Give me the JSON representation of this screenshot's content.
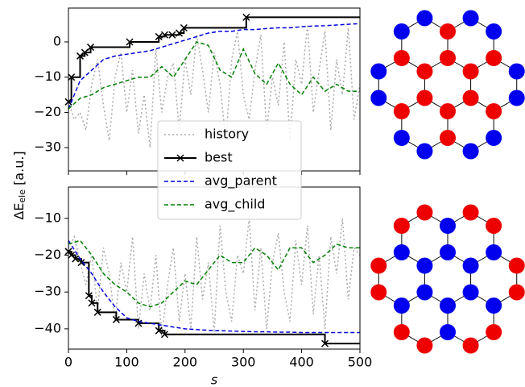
{
  "chart_data": [
    {
      "type": "line",
      "ylabel": [
        "ΔE",
        "ele",
        " [a.u.]"
      ],
      "xlim": [
        0,
        500
      ],
      "xticks": [
        0,
        100,
        200,
        300,
        400,
        500
      ],
      "show_xticklabels": false,
      "ylim": [
        -36.6,
        9.6
      ],
      "yticks": [
        0,
        {
          "value": -10,
          "label": "−10"
        },
        {
          "value": -20,
          "label": "−20"
        },
        {
          "value": -30,
          "label": "−30"
        }
      ],
      "legend": "center",
      "series": [
        {
          "name": "history",
          "color": "#aaaaaa",
          "style": "dotted",
          "x": [
            0,
            10,
            20,
            30,
            40,
            50,
            60,
            70,
            80,
            90,
            100,
            110,
            120,
            130,
            140,
            150,
            160,
            170,
            180,
            190,
            200,
            210,
            220,
            230,
            240,
            250,
            260,
            270,
            280,
            290,
            300,
            310,
            320,
            330,
            340,
            350,
            360,
            370,
            380,
            390,
            400,
            410,
            420,
            430,
            440,
            450,
            460,
            470,
            480,
            490,
            500
          ],
          "values": [
            -17,
            -22,
            -20,
            -25,
            -12,
            -5,
            -18,
            -28,
            -10,
            -3,
            -20,
            -8,
            -26,
            -15,
            -30,
            -2,
            -20,
            -10,
            -6,
            -25,
            -5,
            -15,
            2,
            -8,
            -20,
            -3,
            -12,
            -28,
            -5,
            3,
            -15,
            -22,
            -8,
            2,
            -25,
            -10,
            -18,
            0,
            -28,
            -5,
            -12,
            5,
            -20,
            -8,
            3,
            -25,
            -5,
            -15,
            4,
            -22,
            -12
          ]
        },
        {
          "name": "best",
          "color": "#000000",
          "style": "step",
          "x": [
            0,
            5,
            20,
            28,
            38,
            105,
            155,
            165,
            178,
            190,
            198,
            305
          ],
          "values": [
            -17,
            -10,
            -4,
            -3,
            -1.5,
            0,
            1.5,
            2,
            2,
            2.5,
            4,
            7
          ]
        },
        {
          "name": "avg_parent",
          "color": "#0000dd",
          "style": "dashed",
          "x": [
            0,
            20,
            40,
            60,
            80,
            100,
            120,
            140,
            160,
            180,
            200,
            220,
            240,
            260,
            280,
            300,
            320,
            340,
            360,
            380,
            400,
            420,
            440,
            460,
            480,
            500
          ],
          "values": [
            -19,
            -11,
            -8,
            -5,
            -4,
            -3.5,
            -3,
            -2.5,
            -1.5,
            -0.5,
            0.5,
            1.5,
            2.5,
            3,
            3,
            3.5,
            3.5,
            3.8,
            4,
            4,
            4.3,
            4.5,
            4.6,
            4.8,
            5,
            5.2
          ]
        },
        {
          "name": "avg_child",
          "color": "#008000",
          "style": "dashed",
          "x": [
            0,
            20,
            40,
            60,
            80,
            100,
            120,
            140,
            160,
            180,
            200,
            220,
            240,
            260,
            280,
            300,
            320,
            340,
            360,
            380,
            400,
            420,
            440,
            460,
            480,
            500
          ],
          "values": [
            -19,
            -16,
            -15,
            -13,
            -12,
            -11,
            -10,
            -10,
            -7,
            -10,
            -5,
            0,
            -1,
            -8,
            -10,
            -2,
            -9,
            -12,
            -6,
            -12,
            -15,
            -10,
            -14,
            -12,
            -14,
            -14
          ]
        }
      ]
    },
    {
      "type": "line",
      "xlabel": "s",
      "xlim": [
        0,
        500
      ],
      "xticks": [
        0,
        100,
        200,
        300,
        400,
        500
      ],
      "show_xticklabels": true,
      "ylim": [
        -45.5,
        -1.5
      ],
      "yticks": [
        {
          "value": -10,
          "label": "−10"
        },
        {
          "value": -20,
          "label": "−20"
        },
        {
          "value": -30,
          "label": "−30"
        },
        {
          "value": -40,
          "label": "−40"
        }
      ],
      "series": [
        {
          "name": "history",
          "color": "#aaaaaa",
          "style": "dotted",
          "x": [
            0,
            10,
            20,
            30,
            40,
            50,
            60,
            70,
            80,
            90,
            100,
            110,
            120,
            130,
            140,
            150,
            160,
            170,
            180,
            190,
            200,
            210,
            220,
            230,
            240,
            250,
            260,
            270,
            280,
            290,
            300,
            310,
            320,
            330,
            340,
            350,
            360,
            370,
            380,
            390,
            400,
            410,
            420,
            430,
            440,
            450,
            460,
            470,
            480,
            490,
            500
          ],
          "values": [
            -18,
            -15,
            -22,
            -28,
            -20,
            -35,
            -18,
            -25,
            -38,
            -22,
            -30,
            -15,
            -40,
            -25,
            -35,
            -20,
            -42,
            -28,
            -18,
            -38,
            -25,
            -40,
            -15,
            -32,
            -22,
            -41,
            -12,
            -30,
            -38,
            -20,
            -25,
            -10,
            -35,
            -18,
            -40,
            -22,
            -14,
            -30,
            -38,
            -16,
            -28,
            -12,
            -36,
            -20,
            -40,
            -15,
            -25,
            -10,
            -32,
            -18,
            -20
          ]
        },
        {
          "name": "best",
          "color": "#000000",
          "style": "step",
          "x": [
            0,
            5,
            12,
            22,
            35,
            40,
            50,
            82,
            120,
            155,
            165,
            440
          ],
          "values": [
            -19,
            -20,
            -21,
            -22,
            -31,
            -33,
            -35.5,
            -37.5,
            -38.5,
            -40.5,
            -41.5,
            -44
          ]
        },
        {
          "name": "avg_parent",
          "color": "#0000dd",
          "style": "dashed",
          "x": [
            0,
            20,
            40,
            60,
            80,
            100,
            120,
            140,
            160,
            180,
            200,
            220,
            240,
            260,
            280,
            300,
            320,
            340,
            360,
            380,
            400,
            420,
            440,
            460,
            480,
            500
          ],
          "values": [
            -16,
            -21,
            -25,
            -30,
            -34,
            -37,
            -38,
            -38.5,
            -39,
            -39.5,
            -40,
            -40.2,
            -40.4,
            -40.5,
            -40.6,
            -40.7,
            -40.8,
            -40.8,
            -40.9,
            -40.9,
            -41,
            -41,
            -41,
            -41,
            -41,
            -41
          ]
        },
        {
          "name": "avg_child",
          "color": "#008000",
          "style": "dashed",
          "x": [
            0,
            20,
            40,
            60,
            80,
            100,
            120,
            140,
            160,
            180,
            200,
            220,
            240,
            260,
            280,
            300,
            320,
            340,
            360,
            380,
            400,
            420,
            440,
            460,
            480,
            500
          ],
          "values": [
            -17,
            -16,
            -20,
            -25,
            -28,
            -30,
            -33,
            -34,
            -33,
            -30,
            -27,
            -28,
            -24,
            -20,
            -22,
            -22,
            -18,
            -20,
            -24,
            -18,
            -18,
            -22,
            -20,
            -17,
            -18,
            -18
          ]
        }
      ]
    }
  ]
}
